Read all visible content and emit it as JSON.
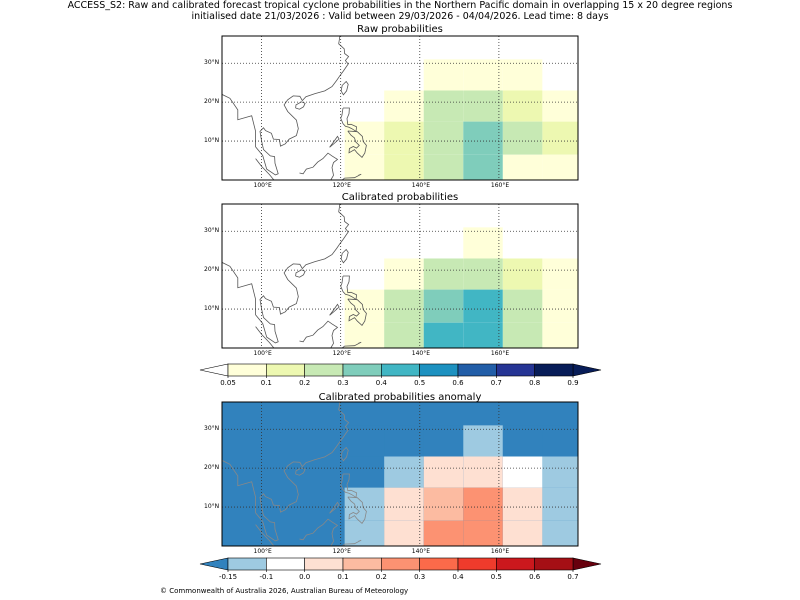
{
  "header": {
    "title_line1": "ACCESS_S2: Raw and calibrated forecast tropical cyclone probabilities in the Northern Pacific domain in overlapping 15 x 20 degree regions",
    "title_line2": "initialised date 21/03/2026 :  Valid between 29/03/2026 - 04/04/2026. Lead time: 8 days"
  },
  "footer": {
    "copyright": "© Commonwealth of Australia 2026, Australian Bureau of Meteorology"
  },
  "map_axes": {
    "lon_range": [
      90,
      180
    ],
    "lat_range": [
      0,
      37
    ],
    "lon_ticks": [
      100,
      120,
      140,
      160
    ],
    "lon_tick_labels": [
      "100°E",
      "120°E",
      "140°E",
      "160°E"
    ],
    "lat_ticks": [
      10,
      20,
      30
    ],
    "lat_tick_labels": [
      "10°N",
      "20°N",
      "30°N"
    ],
    "cell_lon_edges": [
      121,
      131,
      141,
      151,
      161,
      171,
      181
    ],
    "cell_lat_edges": [
      0,
      6.5,
      15,
      23,
      31
    ]
  },
  "colorbars": {
    "probability": {
      "labels": [
        "0.05",
        "0.1",
        "0.2",
        "0.3",
        "0.4",
        "0.5",
        "0.6",
        "0.7",
        "0.8",
        "0.9"
      ],
      "colors": [
        "#ffffd9",
        "#edf8b1",
        "#c7e9b4",
        "#7fcdbb",
        "#41b6c4",
        "#1d91c0",
        "#225ea8",
        "#253494",
        "#081d58"
      ],
      "under_color": "#ffffff",
      "over_color": "#081d58"
    },
    "anomaly": {
      "labels": [
        "-0.15",
        "-0.1",
        "0.0",
        "0.1",
        "0.2",
        "0.3",
        "0.4",
        "0.5",
        "0.6",
        "0.7"
      ],
      "colors": [
        "#9ecae1",
        "#ffffff",
        "#fee0d2",
        "#fcbba1",
        "#fc9272",
        "#fb6a4a",
        "#ef3b2c",
        "#cb181d",
        "#a50f15"
      ],
      "under_color": "#3182bd",
      "over_color": "#67000d"
    }
  },
  "chart_data": [
    {
      "type": "heatmap",
      "name": "raw",
      "title": "Raw probabilities",
      "row_lat_ranges": [
        [
          23,
          31
        ],
        [
          15,
          23
        ],
        [
          6.5,
          15
        ],
        [
          0,
          6.5
        ]
      ],
      "col_lon_ranges": [
        [
          121,
          131
        ],
        [
          131,
          141
        ],
        [
          141,
          151
        ],
        [
          151,
          161
        ],
        [
          161,
          171
        ],
        [
          171,
          181
        ]
      ],
      "values": [
        [
          0.0,
          0.0,
          0.07,
          0.07,
          0.07,
          0.0
        ],
        [
          0.0,
          0.07,
          0.25,
          0.25,
          0.15,
          0.07
        ],
        [
          0.07,
          0.15,
          0.25,
          0.35,
          0.25,
          0.15
        ],
        [
          0.07,
          0.15,
          0.25,
          0.35,
          0.07,
          0.07
        ]
      ]
    },
    {
      "type": "heatmap",
      "name": "calibrated",
      "title": "Calibrated probabilities",
      "row_lat_ranges": [
        [
          23,
          31
        ],
        [
          15,
          23
        ],
        [
          6.5,
          15
        ],
        [
          0,
          6.5
        ]
      ],
      "col_lon_ranges": [
        [
          121,
          131
        ],
        [
          131,
          141
        ],
        [
          141,
          151
        ],
        [
          151,
          161
        ],
        [
          161,
          171
        ],
        [
          171,
          181
        ]
      ],
      "values": [
        [
          0.0,
          0.0,
          0.0,
          0.07,
          0.0,
          0.0
        ],
        [
          0.0,
          0.07,
          0.25,
          0.25,
          0.15,
          0.07
        ],
        [
          0.07,
          0.25,
          0.35,
          0.45,
          0.25,
          0.07
        ],
        [
          0.07,
          0.25,
          0.45,
          0.45,
          0.25,
          0.07
        ]
      ]
    },
    {
      "type": "heatmap",
      "name": "anomaly",
      "title": "Calibrated probabilities anomaly",
      "background_value": -0.2,
      "row_lat_ranges": [
        [
          23,
          31
        ],
        [
          15,
          23
        ],
        [
          6.5,
          15
        ],
        [
          0,
          6.5
        ]
      ],
      "col_lon_ranges": [
        [
          121,
          131
        ],
        [
          131,
          141
        ],
        [
          141,
          151
        ],
        [
          151,
          161
        ],
        [
          161,
          171
        ],
        [
          171,
          181
        ]
      ],
      "values": [
        [
          -0.2,
          -0.2,
          -0.2,
          -0.12,
          -0.2,
          -0.2
        ],
        [
          -0.2,
          -0.12,
          0.05,
          0.05,
          -0.05,
          -0.12
        ],
        [
          -0.12,
          0.05,
          0.15,
          0.25,
          0.05,
          -0.12
        ],
        [
          -0.12,
          0.05,
          0.25,
          0.25,
          0.05,
          -0.12
        ]
      ]
    }
  ]
}
